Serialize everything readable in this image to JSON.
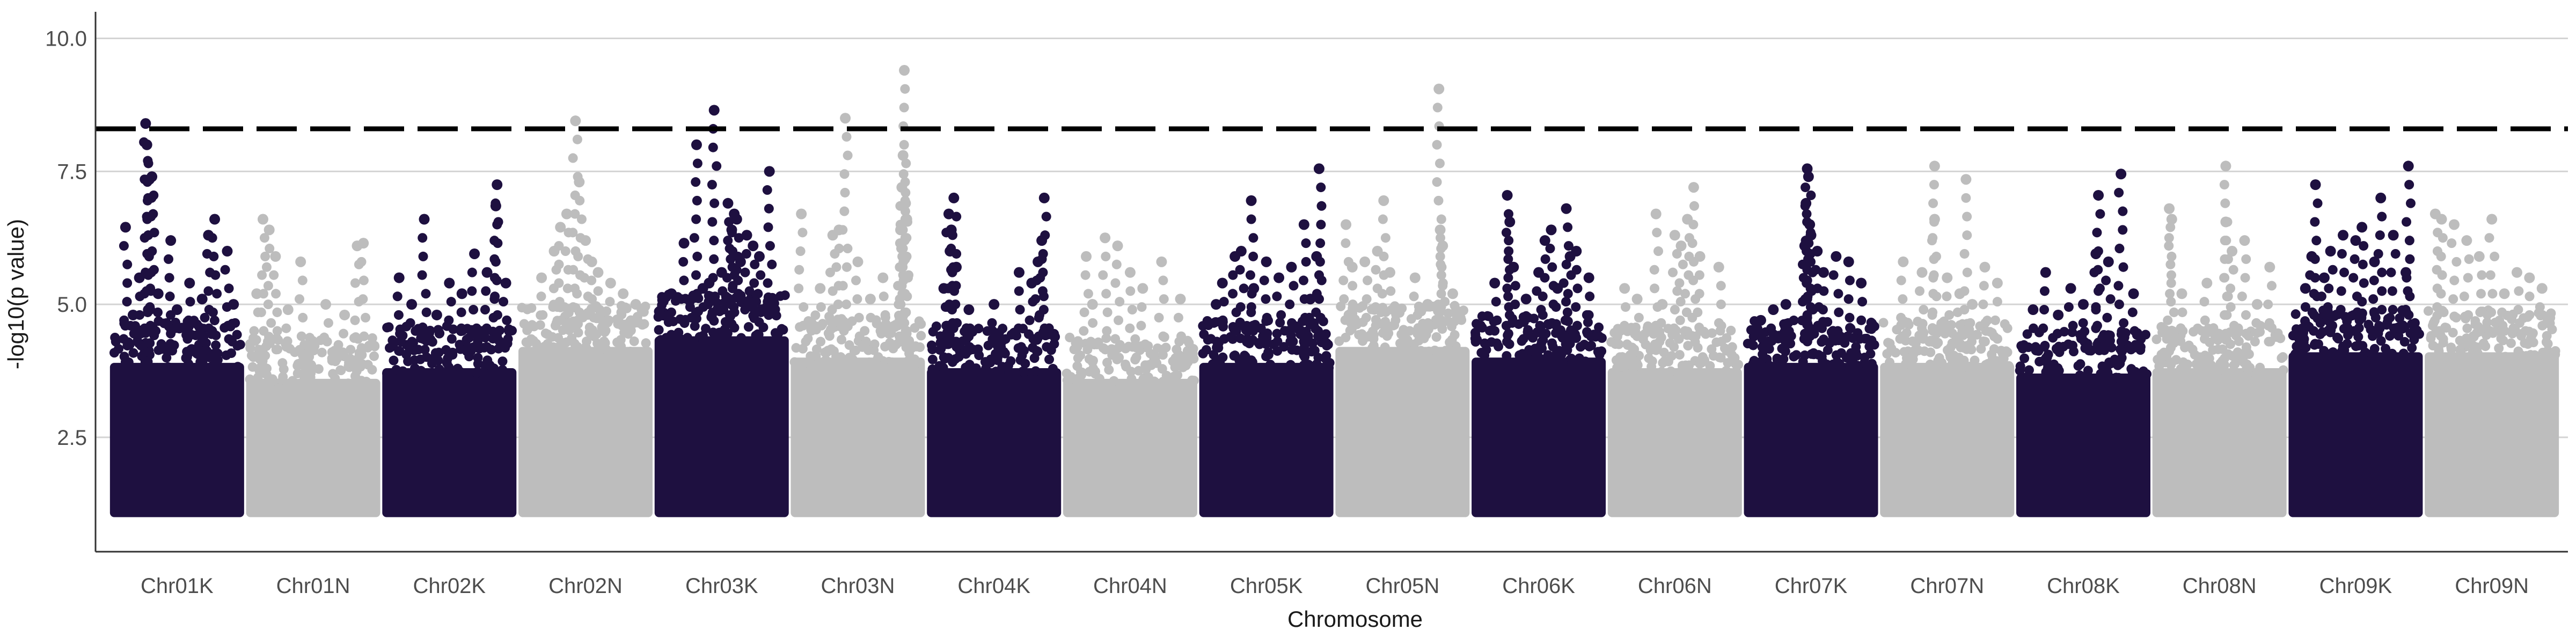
{
  "chart_data": {
    "type": "scatter",
    "subtype": "manhattan",
    "title": "",
    "xlabel": "Chromosome",
    "ylabel": "-log10(p value)",
    "ylim": [
      0.35,
      10.5
    ],
    "yticks": [
      2.5,
      5.0,
      7.5,
      10.0
    ],
    "ytick_labels": [
      "2.5",
      "5.0",
      "7.5",
      "10.0"
    ],
    "grid": {
      "horizontal": true,
      "vertical": false
    },
    "significance_threshold": 8.3,
    "threshold_style": "dashed",
    "point_floor": 1.0,
    "colors": {
      "odd": "#1e1040",
      "even": "#bdbdbd",
      "threshold": "#000000",
      "grid": "#d4d4d4",
      "axis": "#333333"
    },
    "categories": [
      "Chr01K",
      "Chr01N",
      "Chr02K",
      "Chr02N",
      "Chr03K",
      "Chr03N",
      "Chr04K",
      "Chr04N",
      "Chr05K",
      "Chr05N",
      "Chr06K",
      "Chr06N",
      "Chr07K",
      "Chr07N",
      "Chr08K",
      "Chr08N",
      "Chr09K",
      "Chr09N"
    ],
    "series": [
      {
        "chromosome": "Chr01K",
        "color": "odd",
        "dense_upper": 4.3,
        "max": 8.4,
        "points": [
          [
            0.25,
            8.4
          ],
          [
            0.26,
            8.0
          ],
          [
            0.3,
            7.4
          ],
          [
            0.28,
            7.35
          ],
          [
            0.09,
            6.45
          ],
          [
            0.45,
            6.2
          ],
          [
            0.8,
            6.6
          ],
          [
            0.75,
            6.3
          ],
          [
            0.9,
            6.0
          ],
          [
            0.6,
            5.4
          ],
          [
            0.2,
            5.5
          ],
          [
            0.35,
            5.2
          ],
          [
            0.7,
            5.1
          ],
          [
            0.95,
            5.0
          ],
          [
            0.5,
            4.9
          ],
          [
            0.15,
            4.8
          ]
        ]
      },
      {
        "chromosome": "Chr01N",
        "color": "even",
        "dense_upper": 4.0,
        "max": 6.6,
        "points": [
          [
            0.1,
            6.6
          ],
          [
            0.15,
            6.4
          ],
          [
            0.2,
            5.9
          ],
          [
            0.85,
            6.1
          ],
          [
            0.9,
            6.15
          ],
          [
            0.4,
            5.8
          ],
          [
            0.05,
            5.2
          ],
          [
            0.6,
            5.0
          ],
          [
            0.75,
            4.8
          ],
          [
            0.3,
            4.9
          ]
        ]
      },
      {
        "chromosome": "Chr02K",
        "color": "odd",
        "dense_upper": 4.2,
        "max": 7.25,
        "points": [
          [
            0.88,
            7.25
          ],
          [
            0.87,
            6.85
          ],
          [
            0.3,
            6.6
          ],
          [
            0.7,
            5.95
          ],
          [
            0.1,
            5.5
          ],
          [
            0.5,
            5.4
          ],
          [
            0.6,
            5.2
          ],
          [
            0.8,
            5.6
          ],
          [
            0.95,
            5.4
          ],
          [
            0.2,
            5.0
          ],
          [
            0.4,
            4.8
          ]
        ]
      },
      {
        "chromosome": "Chr02N",
        "color": "even",
        "dense_upper": 4.6,
        "max": 8.45,
        "points": [
          [
            0.42,
            8.45
          ],
          [
            0.45,
            7.3
          ],
          [
            0.35,
            6.7
          ],
          [
            0.3,
            6.45
          ],
          [
            0.5,
            6.2
          ],
          [
            0.25,
            6.0
          ],
          [
            0.55,
            5.8
          ],
          [
            0.6,
            5.6
          ],
          [
            0.7,
            5.4
          ],
          [
            0.8,
            5.2
          ],
          [
            0.15,
            5.5
          ],
          [
            0.9,
            5.0
          ]
        ]
      },
      {
        "chromosome": "Chr03K",
        "color": "odd",
        "dense_upper": 4.8,
        "max": 8.65,
        "points": [
          [
            0.44,
            8.65
          ],
          [
            0.3,
            8.0
          ],
          [
            0.88,
            7.5
          ],
          [
            0.55,
            6.9
          ],
          [
            0.6,
            6.7
          ],
          [
            0.62,
            6.6
          ],
          [
            0.58,
            6.4
          ],
          [
            0.7,
            6.3
          ],
          [
            0.75,
            6.1
          ],
          [
            0.2,
            6.15
          ],
          [
            0.8,
            5.9
          ],
          [
            0.65,
            5.8
          ],
          [
            0.5,
            5.6
          ],
          [
            0.4,
            5.4
          ],
          [
            0.1,
            5.2
          ],
          [
            0.9,
            5.1
          ],
          [
            0.35,
            5.3
          ]
        ]
      },
      {
        "chromosome": "Chr03N",
        "color": "even",
        "dense_upper": 4.4,
        "max": 9.4,
        "points": [
          [
            0.87,
            9.4
          ],
          [
            0.4,
            8.5
          ],
          [
            0.86,
            7.8
          ],
          [
            0.85,
            7.2
          ],
          [
            0.88,
            6.9
          ],
          [
            0.89,
            6.6
          ],
          [
            0.84,
            6.4
          ],
          [
            0.05,
            6.7
          ],
          [
            0.35,
            6.4
          ],
          [
            0.3,
            6.3
          ],
          [
            0.5,
            5.8
          ],
          [
            0.7,
            5.5
          ],
          [
            0.2,
            5.3
          ],
          [
            0.6,
            5.1
          ]
        ]
      },
      {
        "chromosome": "Chr04K",
        "color": "odd",
        "dense_upper": 4.2,
        "max": 7.0,
        "points": [
          [
            0.18,
            7.0
          ],
          [
            0.9,
            7.0
          ],
          [
            0.14,
            6.7
          ],
          [
            0.16,
            6.4
          ],
          [
            0.88,
            6.2
          ],
          [
            0.15,
            6.0
          ],
          [
            0.85,
            5.8
          ],
          [
            0.2,
            5.7
          ],
          [
            0.7,
            5.6
          ],
          [
            0.8,
            5.4
          ],
          [
            0.1,
            5.3
          ],
          [
            0.5,
            5.0
          ],
          [
            0.3,
            4.9
          ]
        ]
      },
      {
        "chromosome": "Chr04N",
        "color": "even",
        "dense_upper": 4.0,
        "max": 6.25,
        "points": [
          [
            0.3,
            6.25
          ],
          [
            0.4,
            6.1
          ],
          [
            0.15,
            5.9
          ],
          [
            0.75,
            5.8
          ],
          [
            0.5,
            5.6
          ],
          [
            0.6,
            5.3
          ],
          [
            0.9,
            5.1
          ],
          [
            0.2,
            5.0
          ]
        ]
      },
      {
        "chromosome": "Chr05K",
        "color": "odd",
        "dense_upper": 4.3,
        "max": 7.55,
        "points": [
          [
            0.92,
            7.55
          ],
          [
            0.38,
            6.95
          ],
          [
            0.8,
            6.5
          ],
          [
            0.3,
            6.0
          ],
          [
            0.25,
            5.9
          ],
          [
            0.5,
            5.8
          ],
          [
            0.6,
            5.5
          ],
          [
            0.7,
            5.7
          ],
          [
            0.9,
            5.9
          ],
          [
            0.15,
            5.4
          ],
          [
            0.4,
            5.3
          ],
          [
            0.85,
            5.1
          ],
          [
            0.1,
            5.0
          ]
        ]
      },
      {
        "chromosome": "Chr05N",
        "color": "even",
        "dense_upper": 4.6,
        "max": 9.05,
        "points": [
          [
            0.79,
            9.05
          ],
          [
            0.35,
            6.95
          ],
          [
            0.05,
            6.5
          ],
          [
            0.8,
            6.4
          ],
          [
            0.82,
            6.1
          ],
          [
            0.3,
            6.0
          ],
          [
            0.2,
            5.8
          ],
          [
            0.4,
            5.6
          ],
          [
            0.6,
            5.5
          ],
          [
            0.1,
            5.7
          ],
          [
            0.9,
            5.2
          ],
          [
            0.7,
            5.0
          ]
        ]
      },
      {
        "chromosome": "Chr06K",
        "color": "odd",
        "dense_upper": 4.4,
        "max": 7.05,
        "points": [
          [
            0.25,
            7.05
          ],
          [
            0.72,
            6.8
          ],
          [
            0.27,
            6.55
          ],
          [
            0.6,
            6.4
          ],
          [
            0.55,
            6.2
          ],
          [
            0.8,
            6.0
          ],
          [
            0.75,
            5.9
          ],
          [
            0.3,
            5.7
          ],
          [
            0.5,
            5.6
          ],
          [
            0.9,
            5.5
          ],
          [
            0.15,
            5.4
          ],
          [
            0.65,
            5.3
          ],
          [
            0.4,
            5.1
          ]
        ]
      },
      {
        "chromosome": "Chr06N",
        "color": "even",
        "dense_upper": 4.2,
        "max": 7.2,
        "points": [
          [
            0.65,
            7.2
          ],
          [
            0.6,
            6.6
          ],
          [
            0.35,
            6.7
          ],
          [
            0.5,
            6.3
          ],
          [
            0.55,
            6.1
          ],
          [
            0.7,
            5.9
          ],
          [
            0.85,
            5.7
          ],
          [
            0.1,
            5.3
          ],
          [
            0.2,
            5.1
          ],
          [
            0.4,
            5.0
          ]
        ]
      },
      {
        "chromosome": "Chr07K",
        "color": "odd",
        "dense_upper": 4.3,
        "max": 7.55,
        "points": [
          [
            0.47,
            7.55
          ],
          [
            0.48,
            7.4
          ],
          [
            0.46,
            6.9
          ],
          [
            0.49,
            6.5
          ],
          [
            0.5,
            6.3
          ],
          [
            0.45,
            6.1
          ],
          [
            0.55,
            6.0
          ],
          [
            0.7,
            5.9
          ],
          [
            0.8,
            5.8
          ],
          [
            0.6,
            5.6
          ],
          [
            0.9,
            5.4
          ],
          [
            0.3,
            5.0
          ],
          [
            0.2,
            4.9
          ],
          [
            0.1,
            4.7
          ]
        ]
      },
      {
        "chromosome": "Chr07N",
        "color": "even",
        "dense_upper": 4.3,
        "max": 7.6,
        "points": [
          [
            0.4,
            7.6
          ],
          [
            0.65,
            7.35
          ],
          [
            0.4,
            6.6
          ],
          [
            0.15,
            5.8
          ],
          [
            0.3,
            5.6
          ],
          [
            0.5,
            5.5
          ],
          [
            0.8,
            5.7
          ],
          [
            0.9,
            5.4
          ],
          [
            0.6,
            5.2
          ],
          [
            0.7,
            5.0
          ]
        ]
      },
      {
        "chromosome": "Chr08K",
        "color": "odd",
        "dense_upper": 4.1,
        "max": 7.45,
        "points": [
          [
            0.8,
            7.45
          ],
          [
            0.62,
            7.05
          ],
          [
            0.6,
            5.95
          ],
          [
            0.2,
            5.6
          ],
          [
            0.7,
            5.8
          ],
          [
            0.4,
            5.3
          ],
          [
            0.9,
            5.2
          ],
          [
            0.5,
            5.0
          ],
          [
            0.1,
            4.9
          ],
          [
            0.3,
            4.8
          ]
        ]
      },
      {
        "chromosome": "Chr08N",
        "color": "even",
        "dense_upper": 4.2,
        "max": 7.6,
        "points": [
          [
            0.55,
            7.6
          ],
          [
            0.1,
            6.8
          ],
          [
            0.12,
            6.6
          ],
          [
            0.55,
            6.55
          ],
          [
            0.7,
            6.2
          ],
          [
            0.6,
            6.0
          ],
          [
            0.9,
            5.7
          ],
          [
            0.4,
            5.4
          ],
          [
            0.2,
            5.2
          ],
          [
            0.8,
            5.0
          ]
        ]
      },
      {
        "chromosome": "Chr09K",
        "color": "odd",
        "dense_upper": 4.5,
        "max": 7.6,
        "points": [
          [
            0.92,
            7.6
          ],
          [
            0.18,
            7.25
          ],
          [
            0.7,
            7.0
          ],
          [
            0.55,
            6.45
          ],
          [
            0.4,
            6.3
          ],
          [
            0.5,
            6.2
          ],
          [
            0.8,
            6.3
          ],
          [
            0.3,
            6.0
          ],
          [
            0.15,
            5.9
          ],
          [
            0.65,
            5.8
          ],
          [
            0.9,
            5.6
          ],
          [
            0.25,
            5.5
          ],
          [
            0.1,
            5.3
          ]
        ]
      },
      {
        "chromosome": "Chr09N",
        "color": "even",
        "dense_upper": 4.5,
        "max": 6.7,
        "points": [
          [
            0.05,
            6.7
          ],
          [
            0.1,
            6.6
          ],
          [
            0.2,
            6.5
          ],
          [
            0.5,
            6.6
          ],
          [
            0.3,
            6.2
          ],
          [
            0.4,
            5.9
          ],
          [
            0.7,
            5.6
          ],
          [
            0.8,
            5.5
          ],
          [
            0.9,
            5.3
          ],
          [
            0.6,
            5.2
          ]
        ]
      }
    ]
  }
}
